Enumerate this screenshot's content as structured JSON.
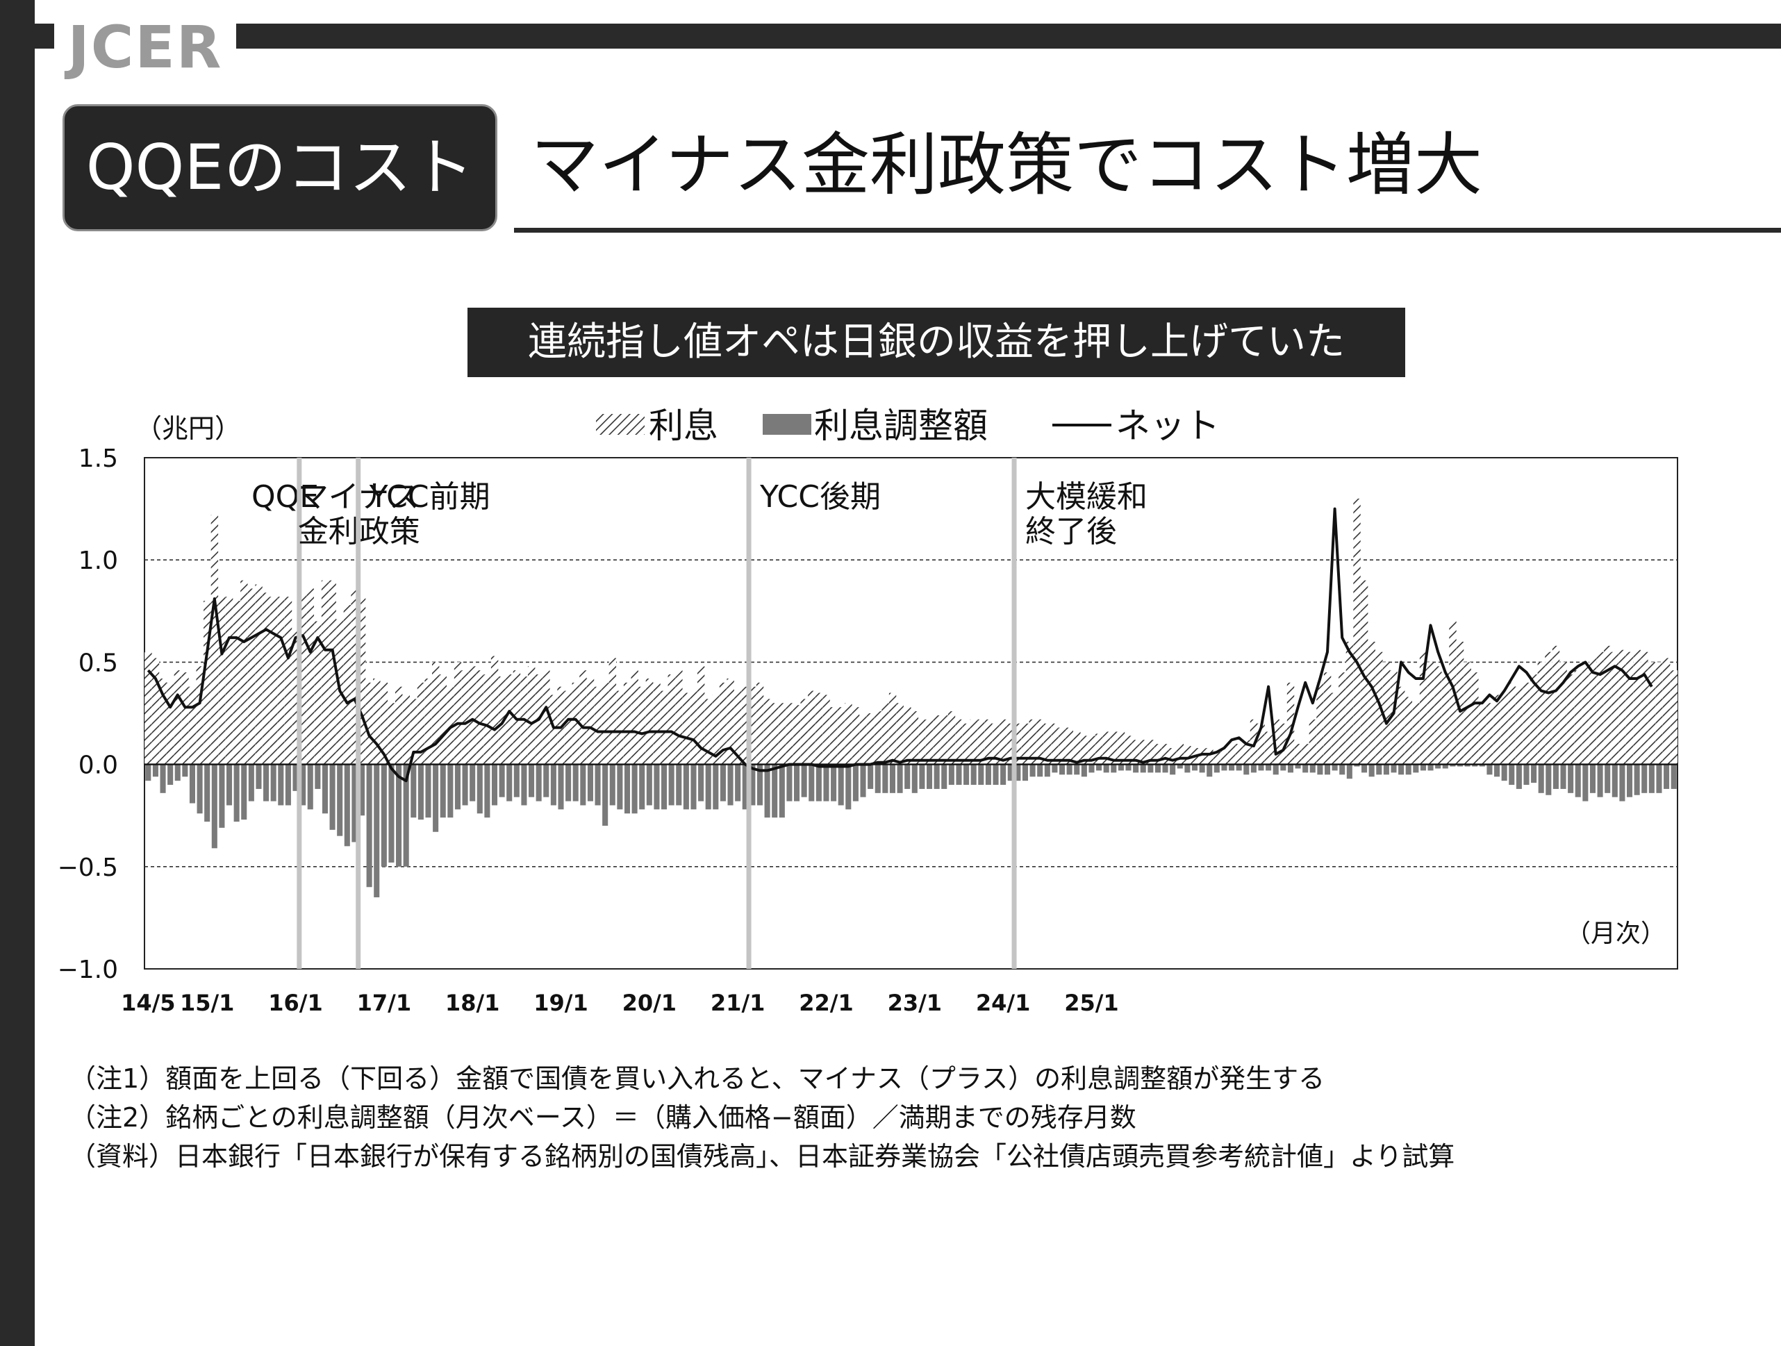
{
  "header": {
    "logo": "JCER",
    "section_label": "QQEのコスト",
    "title": "マイナス金利政策でコスト増大",
    "subtitle": "連続指し値オペは日銀の収益を押し上げていた"
  },
  "colors": {
    "frame": "#2a2a2a",
    "interest_hatch": "#333333",
    "adjustment_bar": "#7a7a7a",
    "net_line": "#111111",
    "regime_divider": "#c4c4c4"
  },
  "chart_data": {
    "type": "bar",
    "unit_label": "（兆円）",
    "frequency_label": "（月次）",
    "ylim": [
      -1.0,
      1.5
    ],
    "yticks": [
      {
        "value": 1.5,
        "label": "1.5"
      },
      {
        "value": 1.0,
        "label": "1.0"
      },
      {
        "value": 0.5,
        "label": "0.5"
      },
      {
        "value": 0.0,
        "label": "0.0"
      },
      {
        "value": -0.5,
        "label": "−0.5"
      },
      {
        "value": -1.0,
        "label": "−1.0"
      }
    ],
    "xticks": [
      {
        "date": "2014-05",
        "label": "14/5"
      },
      {
        "date": "2015-01",
        "label": "15/1"
      },
      {
        "date": "2016-01",
        "label": "16/1"
      },
      {
        "date": "2017-01",
        "label": "17/1"
      },
      {
        "date": "2018-01",
        "label": "18/1"
      },
      {
        "date": "2019-01",
        "label": "19/1"
      },
      {
        "date": "2020-01",
        "label": "20/1"
      },
      {
        "date": "2021-01",
        "label": "21/1"
      },
      {
        "date": "2022-01",
        "label": "22/1"
      },
      {
        "date": "2023-01",
        "label": "23/1"
      },
      {
        "date": "2024-01",
        "label": "24/1"
      },
      {
        "date": "2025-01",
        "label": "25/1"
      }
    ],
    "grid": "dashed horizontal at 1.0, 0.5, -0.5",
    "legend": [
      {
        "key": "interest",
        "label": "利息",
        "style": "hatched"
      },
      {
        "key": "adjustment",
        "label": "利息調整額",
        "style": "solid"
      },
      {
        "key": "net",
        "label": "ネット",
        "style": "line"
      }
    ],
    "legend_position": "top-center",
    "periods": [
      {
        "label": "QQE",
        "line2": "",
        "start": "2014-05"
      },
      {
        "label": "マイナス",
        "line2": "金利政策",
        "start": "2016-02"
      },
      {
        "label": "YCC前期",
        "line2": "",
        "start": "2016-10"
      },
      {
        "label": "YCC後期",
        "line2": "",
        "start": "2021-03"
      },
      {
        "label": "大模緩和",
        "line2": "終了後",
        "start": "2024-03"
      }
    ],
    "start_month": "2014-05",
    "series": [
      {
        "name": "利息",
        "values": [
          0.55,
          0.52,
          0.42,
          0.4,
          0.46,
          0.45,
          0.38,
          0.48,
          0.8,
          1.22,
          0.82,
          0.82,
          0.8,
          0.9,
          0.86,
          0.88,
          0.84,
          0.82,
          0.82,
          0.82,
          0.66,
          0.83,
          0.86,
          0.7,
          0.9,
          0.9,
          0.71,
          0.78,
          0.86,
          0.82,
          0.4,
          0.42,
          0.4,
          0.3,
          0.38,
          0.34,
          0.32,
          0.4,
          0.42,
          0.5,
          0.44,
          0.38,
          0.5,
          0.46,
          0.48,
          0.46,
          0.44,
          0.53,
          0.43,
          0.44,
          0.46,
          0.43,
          0.48,
          0.44,
          0.46,
          0.34,
          0.38,
          0.36,
          0.4,
          0.46,
          0.42,
          0.38,
          0.4,
          0.52,
          0.36,
          0.4,
          0.46,
          0.38,
          0.42,
          0.4,
          0.36,
          0.44,
          0.46,
          0.35,
          0.36,
          0.48,
          0.32,
          0.34,
          0.4,
          0.42,
          0.36,
          0.38,
          0.38,
          0.4,
          0.32,
          0.3,
          0.3,
          0.3,
          0.29,
          0.32,
          0.36,
          0.35,
          0.34,
          0.28,
          0.28,
          0.3,
          0.28,
          0.24,
          0.25,
          0.26,
          0.3,
          0.35,
          0.3,
          0.28,
          0.26,
          0.22,
          0.22,
          0.24,
          0.24,
          0.26,
          0.22,
          0.2,
          0.22,
          0.22,
          0.22,
          0.2,
          0.22,
          0.2,
          0.2,
          0.2,
          0.22,
          0.22,
          0.2,
          0.2,
          0.18,
          0.18,
          0.16,
          0.14,
          0.14,
          0.15,
          0.16,
          0.16,
          0.16,
          0.14,
          0.12,
          0.12,
          0.12,
          0.1,
          0.1,
          0.08,
          0.1,
          0.09,
          0.08,
          0.08,
          0.08,
          0.06,
          0.07,
          0.1,
          0.1,
          0.12,
          0.22,
          0.2,
          0.16,
          0.22,
          0.2,
          0.4,
          0.1,
          0.1,
          0.22,
          0.4,
          0.45,
          0.35,
          0.45,
          0.6,
          1.3,
          0.9,
          0.6,
          0.55,
          0.5,
          0.46,
          0.38,
          0.33,
          0.3,
          0.55,
          0.5,
          0.48,
          0.45,
          0.7,
          0.6,
          0.5,
          0.45,
          0.32,
          0.3,
          0.34,
          0.35,
          0.4,
          0.38,
          0.4,
          0.44,
          0.5,
          0.55,
          0.58,
          0.5,
          0.44,
          0.46,
          0.48,
          0.52,
          0.55,
          0.58,
          0.55,
          0.56,
          0.55,
          0.56,
          0.55,
          0.5,
          0.5,
          0.52,
          0.46
        ],
        "style": "hatched"
      },
      {
        "name": "利息調整額",
        "values": [
          -0.08,
          -0.06,
          -0.14,
          -0.1,
          -0.08,
          -0.06,
          -0.19,
          -0.24,
          -0.28,
          -0.41,
          -0.31,
          -0.2,
          -0.28,
          -0.27,
          -0.18,
          -0.12,
          -0.18,
          -0.18,
          -0.2,
          -0.2,
          -0.13,
          -0.2,
          -0.22,
          -0.12,
          -0.24,
          -0.32,
          -0.35,
          -0.4,
          -0.38,
          -0.25,
          -0.6,
          -0.65,
          -0.5,
          -0.48,
          -0.5,
          -0.5,
          -0.26,
          -0.27,
          -0.26,
          -0.33,
          -0.26,
          -0.26,
          -0.22,
          -0.2,
          -0.18,
          -0.24,
          -0.26,
          -0.2,
          -0.16,
          -0.18,
          -0.16,
          -0.2,
          -0.16,
          -0.18,
          -0.16,
          -0.2,
          -0.22,
          -0.18,
          -0.18,
          -0.2,
          -0.18,
          -0.2,
          -0.3,
          -0.2,
          -0.22,
          -0.24,
          -0.24,
          -0.22,
          -0.2,
          -0.22,
          -0.22,
          -0.2,
          -0.2,
          -0.22,
          -0.22,
          -0.18,
          -0.22,
          -0.22,
          -0.18,
          -0.2,
          -0.18,
          -0.22,
          -0.2,
          -0.2,
          -0.26,
          -0.26,
          -0.26,
          -0.18,
          -0.18,
          -0.16,
          -0.18,
          -0.18,
          -0.18,
          -0.18,
          -0.2,
          -0.22,
          -0.18,
          -0.16,
          -0.12,
          -0.14,
          -0.14,
          -0.14,
          -0.14,
          -0.12,
          -0.14,
          -0.12,
          -0.12,
          -0.12,
          -0.12,
          -0.1,
          -0.1,
          -0.1,
          -0.1,
          -0.1,
          -0.1,
          -0.1,
          -0.1,
          -0.08,
          -0.08,
          -0.08,
          -0.06,
          -0.06,
          -0.06,
          -0.04,
          -0.05,
          -0.05,
          -0.05,
          -0.06,
          -0.04,
          -0.03,
          -0.04,
          -0.04,
          -0.03,
          -0.03,
          -0.04,
          -0.04,
          -0.04,
          -0.04,
          -0.04,
          -0.05,
          -0.02,
          -0.04,
          -0.03,
          -0.04,
          -0.06,
          -0.04,
          -0.03,
          -0.03,
          -0.03,
          -0.05,
          -0.04,
          -0.03,
          -0.03,
          -0.05,
          -0.03,
          -0.04,
          -0.02,
          -0.04,
          -0.04,
          -0.05,
          -0.05,
          -0.03,
          -0.05,
          -0.07,
          -0.01,
          -0.04,
          -0.06,
          -0.05,
          -0.05,
          -0.04,
          -0.05,
          -0.05,
          -0.04,
          -0.03,
          -0.03,
          -0.02,
          -0.02,
          -0.01,
          -0.01,
          -0.01,
          -0.01,
          -0.01,
          -0.05,
          -0.06,
          -0.08,
          -0.1,
          -0.12,
          -0.1,
          -0.09,
          -0.14,
          -0.15,
          -0.12,
          -0.12,
          -0.14,
          -0.16,
          -0.18,
          -0.14,
          -0.16,
          -0.14,
          -0.16,
          -0.18,
          -0.16,
          -0.15,
          -0.14,
          -0.14,
          -0.14,
          -0.12,
          -0.12
        ],
        "style": "solid"
      },
      {
        "name": "ネット",
        "values": [
          0.46,
          0.42,
          0.34,
          0.28,
          0.34,
          0.28,
          0.28,
          0.3,
          0.55,
          0.81,
          0.54,
          0.62,
          0.62,
          0.6,
          0.62,
          0.64,
          0.66,
          0.64,
          0.62,
          0.52,
          0.62,
          0.63,
          0.55,
          0.62,
          0.56,
          0.56,
          0.36,
          0.3,
          0.32,
          0.24,
          0.14,
          0.1,
          0.05,
          -0.02,
          -0.06,
          -0.08,
          0.06,
          0.06,
          0.08,
          0.1,
          0.14,
          0.18,
          0.2,
          0.2,
          0.22,
          0.2,
          0.19,
          0.17,
          0.2,
          0.26,
          0.22,
          0.22,
          0.2,
          0.22,
          0.28,
          0.18,
          0.18,
          0.22,
          0.22,
          0.18,
          0.18,
          0.16,
          0.16,
          0.16,
          0.16,
          0.16,
          0.16,
          0.15,
          0.16,
          0.16,
          0.16,
          0.16,
          0.14,
          0.13,
          0.12,
          0.08,
          0.06,
          0.04,
          0.07,
          0.08,
          0.04,
          0.0,
          -0.02,
          -0.03,
          -0.03,
          -0.02,
          -0.01,
          0.0,
          0.0,
          0.0,
          0.0,
          -0.01,
          -0.01,
          -0.01,
          -0.01,
          -0.01,
          0.0,
          0.0,
          0.0,
          0.01,
          0.01,
          0.02,
          0.01,
          0.02,
          0.02,
          0.02,
          0.02,
          0.02,
          0.02,
          0.02,
          0.02,
          0.02,
          0.02,
          0.02,
          0.03,
          0.03,
          0.02,
          0.03,
          0.03,
          0.03,
          0.03,
          0.03,
          0.02,
          0.02,
          0.02,
          0.02,
          0.01,
          0.02,
          0.02,
          0.03,
          0.03,
          0.02,
          0.02,
          0.02,
          0.02,
          0.01,
          0.02,
          0.02,
          0.03,
          0.02,
          0.03,
          0.03,
          0.04,
          0.05,
          0.05,
          0.06,
          0.08,
          0.12,
          0.13,
          0.1,
          0.09,
          0.18,
          0.38,
          0.05,
          0.07,
          0.15,
          0.28,
          0.4,
          0.3,
          0.42,
          0.55,
          1.25,
          0.62,
          0.55,
          0.5,
          0.43,
          0.38,
          0.3,
          0.2,
          0.25,
          0.5,
          0.45,
          0.42,
          0.42,
          0.68,
          0.55,
          0.45,
          0.38,
          0.26,
          0.28,
          0.3,
          0.3,
          0.34,
          0.31,
          0.36,
          0.42,
          0.48,
          0.45,
          0.4,
          0.36,
          0.35,
          0.36,
          0.4,
          0.45,
          0.48,
          0.5,
          0.45,
          0.44,
          0.46,
          0.48,
          0.46,
          0.42,
          0.42,
          0.44,
          0.38
        ]
      }
    ]
  },
  "notes": [
    "（注1）額面を上回る（下回る）金額で国債を買い入れると、マイナス（プラス）の利息調整額が発生する",
    "（注2）銘柄ごとの利息調整額（月次ベース）＝（購入価格−額面）／満期までの残存月数",
    "（資料）日本銀行「日本銀行が保有する銘柄別の国債残高」、日本証券業協会「公社債店頭売買参考統計値」より試算"
  ]
}
